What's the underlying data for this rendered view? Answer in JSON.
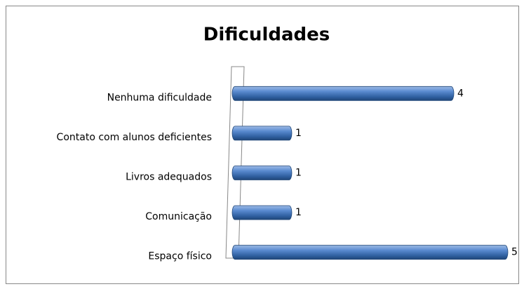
{
  "chart_data": {
    "type": "bar",
    "orientation": "horizontal",
    "title": "Dificuldades",
    "categories": [
      "Nenhuma dificuldade",
      "Contato com alunos deficientes",
      "Livros adequados",
      "Comunicação",
      "Espaço físico"
    ],
    "values": [
      4,
      1,
      1,
      1,
      5
    ],
    "color": "#4a7cc0",
    "xlim": [
      0,
      5
    ]
  }
}
